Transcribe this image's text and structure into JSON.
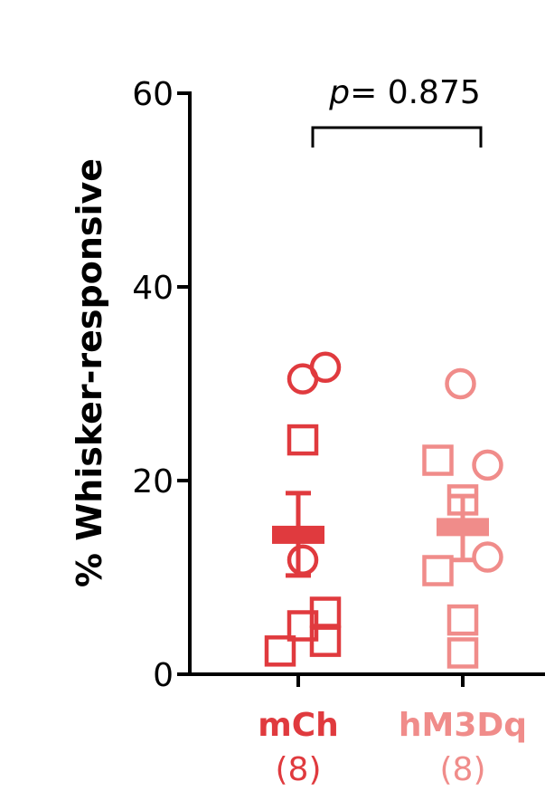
{
  "chart_data": {
    "type": "scatter",
    "ylabel": "% Whisker-responsive",
    "ylim": [
      0,
      60
    ],
    "yticks": [
      0,
      20,
      40,
      60
    ],
    "annotation": {
      "p_label": "p",
      "p_value_text": "= 0.875"
    },
    "groups": [
      {
        "label": "mCh",
        "n_label": "(8)",
        "color": "#e03a3e",
        "mean": 14.4,
        "sem_low": 10.2,
        "sem_high": 18.7,
        "points": [
          {
            "shape": "circle",
            "offset": 0.1,
            "y": 30.5
          },
          {
            "shape": "circle",
            "offset": 0.6,
            "y": 31.7
          },
          {
            "shape": "circle",
            "offset": 0.1,
            "y": 11.8
          },
          {
            "shape": "square",
            "offset": 0.1,
            "y": 24.2
          },
          {
            "shape": "square",
            "offset": 0.1,
            "y": 5.0
          },
          {
            "shape": "square",
            "offset": 0.6,
            "y": 6.4
          },
          {
            "shape": "square",
            "offset": 0.6,
            "y": 3.4
          },
          {
            "shape": "square",
            "offset": -0.4,
            "y": 2.4
          }
        ]
      },
      {
        "label": "hM3Dq",
        "n_label": "(8)",
        "color": "#f08c8a",
        "mean": 15.2,
        "sem_low": 11.8,
        "sem_high": 18.4,
        "points": [
          {
            "shape": "circle",
            "offset": -0.05,
            "y": 30.0
          },
          {
            "shape": "circle",
            "offset": 0.55,
            "y": 21.6
          },
          {
            "shape": "circle",
            "offset": 0.55,
            "y": 12.1
          },
          {
            "shape": "square",
            "offset": -0.55,
            "y": 22.1
          },
          {
            "shape": "square",
            "offset": 0.0,
            "y": 18.0
          },
          {
            "shape": "square",
            "offset": -0.55,
            "y": 10.7
          },
          {
            "shape": "square",
            "offset": 0.0,
            "y": 5.6
          },
          {
            "shape": "square",
            "offset": 0.0,
            "y": 2.2
          }
        ]
      }
    ]
  }
}
